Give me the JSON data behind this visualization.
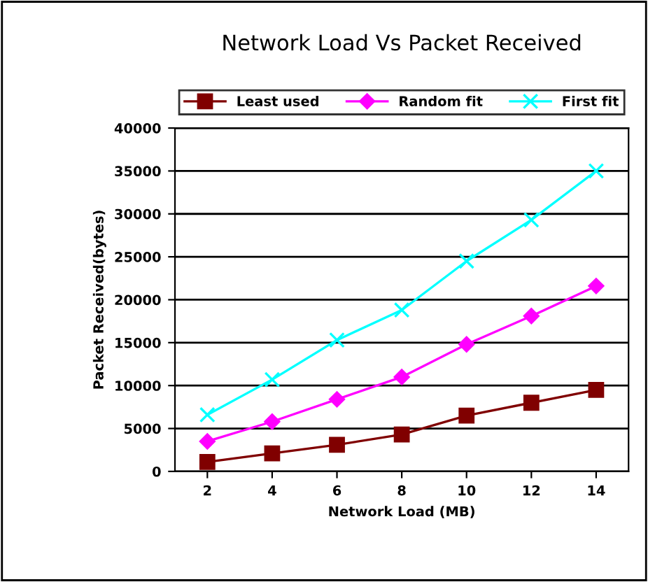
{
  "chart_data": {
    "type": "line",
    "title": "Network Load Vs Packet Received",
    "xlabel": "Network Load (MB)",
    "ylabel": "Packet Received(bytes)",
    "categories": [
      "2",
      "4",
      "6",
      "8",
      "10",
      "12",
      "14"
    ],
    "series": [
      {
        "name": "Least used",
        "color": "#800000",
        "marker": "square",
        "values": [
          1100,
          2100,
          3100,
          4300,
          6500,
          8000,
          9500
        ]
      },
      {
        "name": "Random fit",
        "color": "#ff00ff",
        "marker": "diamond",
        "values": [
          3500,
          5800,
          8400,
          11000,
          14800,
          18100,
          21600
        ]
      },
      {
        "name": "First fit",
        "color": "#00ffff",
        "marker": "cross",
        "values": [
          6600,
          10700,
          15300,
          18800,
          24500,
          29300,
          35000
        ]
      }
    ],
    "ylim": [
      0,
      40000
    ],
    "yticks": [
      0,
      5000,
      10000,
      15000,
      20000,
      25000,
      30000,
      35000,
      40000
    ],
    "grid": "y",
    "legend": "top"
  }
}
